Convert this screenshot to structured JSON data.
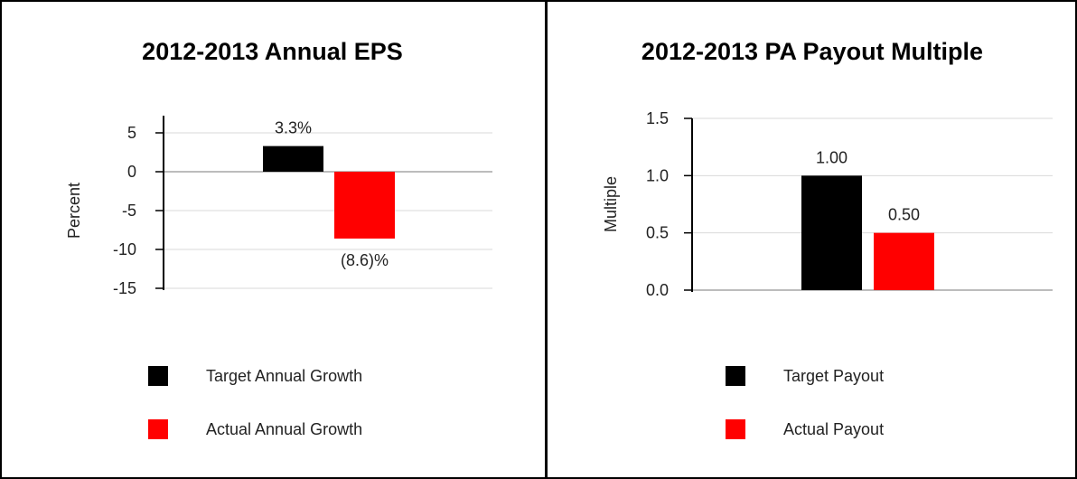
{
  "colors": {
    "target": "#000000",
    "actual": "#ff0000",
    "grid": "#d9d9d9",
    "axis": "#000000",
    "text": "#222222"
  },
  "chart_data": [
    {
      "type": "bar",
      "title": "2012-2013 Annual EPS",
      "ylabel": "Percent",
      "xlabel": "",
      "ylim": [
        -15,
        5
      ],
      "yticks": [
        5,
        0,
        -5,
        -10,
        -15
      ],
      "ytick_labels": [
        "5",
        "0",
        "-5",
        "-10",
        "-15"
      ],
      "grid": true,
      "legend_position": "bottom",
      "series": [
        {
          "name": "Target Annual Growth",
          "value": 3.3,
          "label": "3.3%",
          "color": "#000000"
        },
        {
          "name": "Actual Annual Growth",
          "value": -8.6,
          "label": "(8.6)%",
          "color": "#ff0000"
        }
      ]
    },
    {
      "type": "bar",
      "title": "2012-2013 PA Payout Multiple",
      "ylabel": "Multiple",
      "xlabel": "",
      "ylim": [
        0,
        1.5
      ],
      "yticks": [
        1.5,
        1.0,
        0.5,
        0.0
      ],
      "ytick_labels": [
        "1.5",
        "1.0",
        "0.5",
        "0.0"
      ],
      "grid": true,
      "legend_position": "bottom",
      "series": [
        {
          "name": "Target Payout",
          "value": 1.0,
          "label": "1.00",
          "color": "#000000"
        },
        {
          "name": "Actual Payout",
          "value": 0.5,
          "label": "0.50",
          "color": "#ff0000"
        }
      ]
    }
  ]
}
